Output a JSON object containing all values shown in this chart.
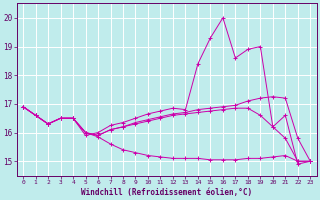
{
  "xlabel": "Windchill (Refroidissement éolien,°C)",
  "bg_color": "#c0ecec",
  "grid_color": "#ffffff",
  "line_color": "#cc00aa",
  "xlim": [
    -0.5,
    23.5
  ],
  "ylim": [
    14.5,
    20.5
  ],
  "yticks": [
    15,
    16,
    17,
    18,
    19,
    20
  ],
  "xticks": [
    0,
    1,
    2,
    3,
    4,
    5,
    6,
    7,
    8,
    9,
    10,
    11,
    12,
    13,
    14,
    15,
    16,
    17,
    18,
    19,
    20,
    21,
    22,
    23
  ],
  "series1_x": [
    0,
    1,
    2,
    3,
    4,
    5,
    6,
    7,
    8,
    9,
    10,
    11,
    12,
    13,
    14,
    15,
    16,
    17,
    18,
    19,
    20,
    21,
    22,
    23
  ],
  "series1_y": [
    16.9,
    16.6,
    16.3,
    16.5,
    16.5,
    15.9,
    16.0,
    16.25,
    16.35,
    16.5,
    16.65,
    16.75,
    16.85,
    16.8,
    18.4,
    19.3,
    20.0,
    18.6,
    18.9,
    19.0,
    16.2,
    16.6,
    14.9,
    15.0
  ],
  "series2_x": [
    0,
    1,
    2,
    3,
    4,
    5,
    6,
    7,
    8,
    9,
    10,
    11,
    12,
    13,
    14,
    15,
    16,
    17,
    18,
    19,
    20,
    21,
    22,
    23
  ],
  "series2_y": [
    16.9,
    16.6,
    16.3,
    16.5,
    16.5,
    16.0,
    15.9,
    16.1,
    16.2,
    16.3,
    16.4,
    16.5,
    16.6,
    16.65,
    16.7,
    16.75,
    16.8,
    16.85,
    16.85,
    16.6,
    16.2,
    15.8,
    15.0,
    15.0
  ],
  "series3_x": [
    0,
    1,
    2,
    3,
    4,
    5,
    6,
    7,
    8,
    9,
    10,
    11,
    12,
    13,
    14,
    15,
    16,
    17,
    18,
    19,
    20,
    21,
    22,
    23
  ],
  "series3_y": [
    16.9,
    16.6,
    16.3,
    16.5,
    16.5,
    16.0,
    15.9,
    16.1,
    16.2,
    16.35,
    16.45,
    16.55,
    16.65,
    16.7,
    16.8,
    16.85,
    16.9,
    16.95,
    17.1,
    17.2,
    17.25,
    17.2,
    15.8,
    15.0
  ],
  "series4_x": [
    0,
    1,
    2,
    3,
    4,
    5,
    6,
    7,
    8,
    9,
    10,
    11,
    12,
    13,
    14,
    15,
    16,
    17,
    18,
    19,
    20,
    21,
    22,
    23
  ],
  "series4_y": [
    16.9,
    16.6,
    16.3,
    16.5,
    16.5,
    16.0,
    15.85,
    15.6,
    15.4,
    15.3,
    15.2,
    15.15,
    15.1,
    15.1,
    15.1,
    15.05,
    15.05,
    15.05,
    15.1,
    15.1,
    15.15,
    15.2,
    15.0,
    15.0
  ]
}
